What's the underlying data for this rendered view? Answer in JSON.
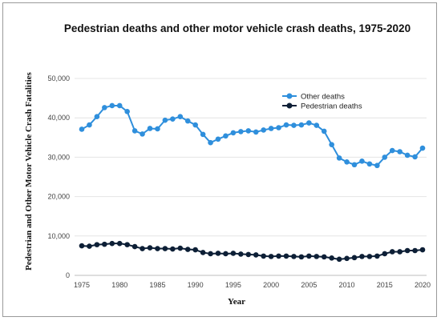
{
  "chart_data": {
    "type": "line",
    "title": "Pedestrian deaths and other motor vehicle crash deaths, 1975-2020",
    "xlabel": "Year",
    "ylabel": "Pedestrian and Other Motor Vehicle Crash Fatalities",
    "xlim": [
      1975,
      2020
    ],
    "ylim": [
      0,
      50000
    ],
    "x_ticks": [
      "1975",
      "1980",
      "1985",
      "1990",
      "1995",
      "2000",
      "2005",
      "2010",
      "2015",
      "2020"
    ],
    "y_ticks": [
      "0",
      "10,000",
      "20,000",
      "30,000",
      "40,000",
      "50,000"
    ],
    "grid": "horizontal",
    "legend_position": "top-right",
    "x": [
      1975,
      1976,
      1977,
      1978,
      1979,
      1980,
      1981,
      1982,
      1983,
      1984,
      1985,
      1986,
      1987,
      1988,
      1989,
      1990,
      1991,
      1992,
      1993,
      1994,
      1995,
      1996,
      1997,
      1998,
      1999,
      2000,
      2001,
      2002,
      2003,
      2004,
      2005,
      2006,
      2007,
      2008,
      2009,
      2010,
      2011,
      2012,
      2013,
      2014,
      2015,
      2016,
      2017,
      2018,
      2019,
      2020
    ],
    "series": [
      {
        "name": "Other deaths",
        "color": "#2f8fdc",
        "values": [
          37100,
          38200,
          40300,
          42600,
          43100,
          43100,
          41600,
          36700,
          35900,
          37300,
          37200,
          39400,
          39700,
          40300,
          39200,
          38200,
          35800,
          33700,
          34600,
          35400,
          36200,
          36500,
          36700,
          36400,
          36900,
          37300,
          37500,
          38200,
          38100,
          38200,
          38700,
          38100,
          36600,
          33200,
          29800,
          28800,
          28100,
          29000,
          28300,
          27900,
          30000,
          31700,
          31400,
          30500,
          30100,
          32300
        ]
      },
      {
        "name": "Pedestrian deaths",
        "color": "#0d1f36",
        "values": [
          7500,
          7400,
          7800,
          7900,
          8100,
          8100,
          7800,
          7300,
          6800,
          7000,
          6800,
          6800,
          6700,
          6900,
          6600,
          6500,
          5800,
          5500,
          5600,
          5500,
          5600,
          5400,
          5300,
          5200,
          4900,
          4800,
          4900,
          4900,
          4800,
          4700,
          4900,
          4800,
          4700,
          4400,
          4100,
          4300,
          4500,
          4800,
          4800,
          4900,
          5500,
          6000,
          6000,
          6300,
          6300,
          6500
        ]
      }
    ]
  }
}
